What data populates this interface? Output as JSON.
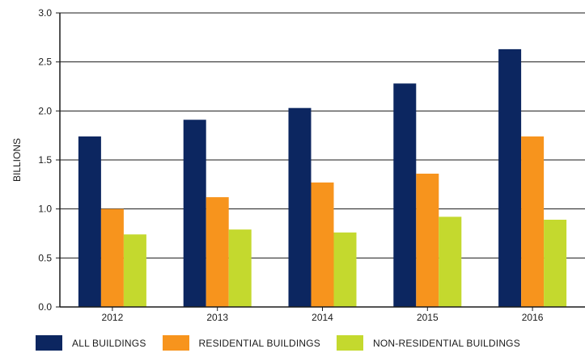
{
  "chart_data": {
    "type": "bar",
    "categories": [
      "2012",
      "2013",
      "2014",
      "2015",
      "2016"
    ],
    "series": [
      {
        "name": "ALL BUILDINGS",
        "values": [
          1.74,
          1.91,
          2.03,
          2.28,
          2.63
        ],
        "color": "#0c2660"
      },
      {
        "name": "RESIDENTIAL BUILDINGS",
        "values": [
          1.0,
          1.12,
          1.27,
          1.36,
          1.74
        ],
        "color": "#f7941d"
      },
      {
        "name": "NON-RESIDENTIAL BUILDINGS",
        "values": [
          0.74,
          0.79,
          0.76,
          0.92,
          0.89
        ],
        "color": "#c4d92e"
      }
    ],
    "yticks": [
      "0.0",
      "0.5",
      "1.0",
      "1.5",
      "2.0",
      "2.5",
      "3.0"
    ],
    "xlabel": "",
    "ylabel": "BILLIONS",
    "ylim": [
      0,
      3.0
    ],
    "grid": true,
    "legend_position": "bottom"
  }
}
